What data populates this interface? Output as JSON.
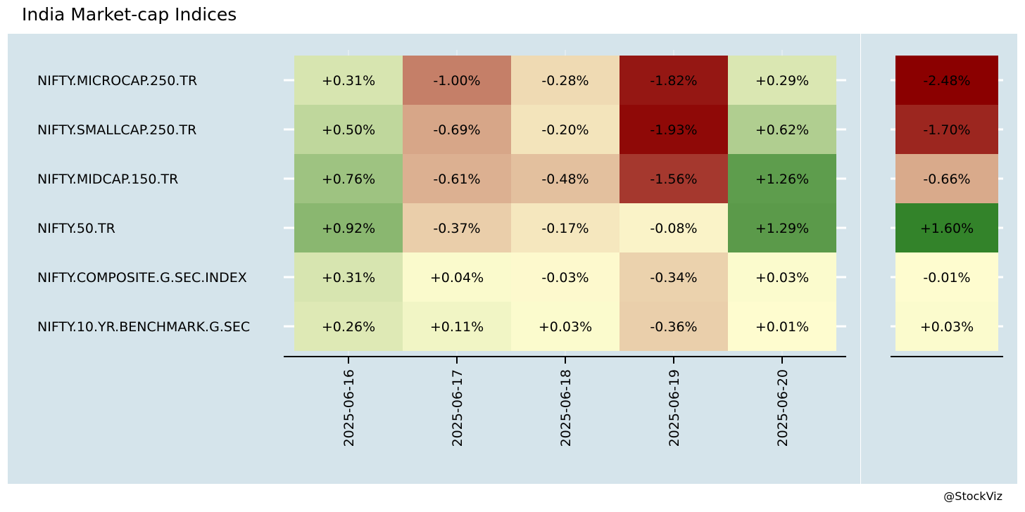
{
  "title": "India Market-cap Indices",
  "caption": "@StockViz",
  "colors": {
    "panel_bg": "#d5e4eb",
    "negative_max": "#8b0000",
    "neutral": "#fffdd0",
    "positive_max": "#006400",
    "text": "#000000"
  },
  "chart_data": [
    {
      "type": "heatmap",
      "title": "",
      "xlabel": "",
      "ylabel": "",
      "x": [
        "2025-06-16",
        "2025-06-17",
        "2025-06-18",
        "2025-06-19",
        "2025-06-20"
      ],
      "y": [
        "NIFTY.MICROCAP.250.TR",
        "NIFTY.SMALLCAP.250.TR",
        "NIFTY.MIDCAP.150.TR",
        "NIFTY.50.TR",
        "NIFTY.COMPOSITE.G.SEC.INDEX",
        "NIFTY.10.YR.BENCHMARK.G.SEC"
      ],
      "unit": "%",
      "values": [
        [
          0.31,
          -1.0,
          -0.28,
          -1.82,
          0.29
        ],
        [
          0.5,
          -0.69,
          -0.2,
          -1.93,
          0.62
        ],
        [
          0.76,
          -0.61,
          -0.48,
          -1.56,
          1.26
        ],
        [
          0.92,
          -0.37,
          -0.17,
          -0.08,
          1.29
        ],
        [
          0.31,
          0.04,
          -0.03,
          -0.34,
          0.03
        ],
        [
          0.26,
          0.11,
          0.03,
          -0.36,
          0.01
        ]
      ],
      "labels": [
        [
          "+0.31%",
          "-1.00%",
          "-0.28%",
          "-1.82%",
          "+0.29%"
        ],
        [
          "+0.50%",
          "-0.69%",
          "-0.20%",
          "-1.93%",
          "+0.62%"
        ],
        [
          "+0.76%",
          "-0.61%",
          "-0.48%",
          "-1.56%",
          "+1.26%"
        ],
        [
          "+0.92%",
          "-0.37%",
          "-0.17%",
          "-0.08%",
          "+1.29%"
        ],
        [
          "+0.31%",
          "+0.04%",
          "-0.03%",
          "-0.34%",
          "+0.03%"
        ],
        [
          "+0.26%",
          "+0.11%",
          "+0.03%",
          "-0.36%",
          "+0.01%"
        ]
      ],
      "color_scale": "diverging red-cream-green, centered at 0",
      "grid": true,
      "legend": "none"
    },
    {
      "type": "heatmap",
      "title": "",
      "y": [
        "NIFTY.MICROCAP.250.TR",
        "NIFTY.SMALLCAP.250.TR",
        "NIFTY.MIDCAP.150.TR",
        "NIFTY.50.TR",
        "NIFTY.COMPOSITE.G.SEC.INDEX",
        "NIFTY.10.YR.BENCHMARK.G.SEC"
      ],
      "unit": "%",
      "values": [
        -2.48,
        -1.7,
        -0.66,
        1.6,
        -0.01,
        0.03
      ],
      "labels": [
        "-2.48%",
        "-1.70%",
        "-0.66%",
        "+1.60%",
        "-0.01%",
        "+0.03%"
      ],
      "color_scale": "diverging red-cream-green, centered at 0",
      "legend": "none"
    }
  ]
}
